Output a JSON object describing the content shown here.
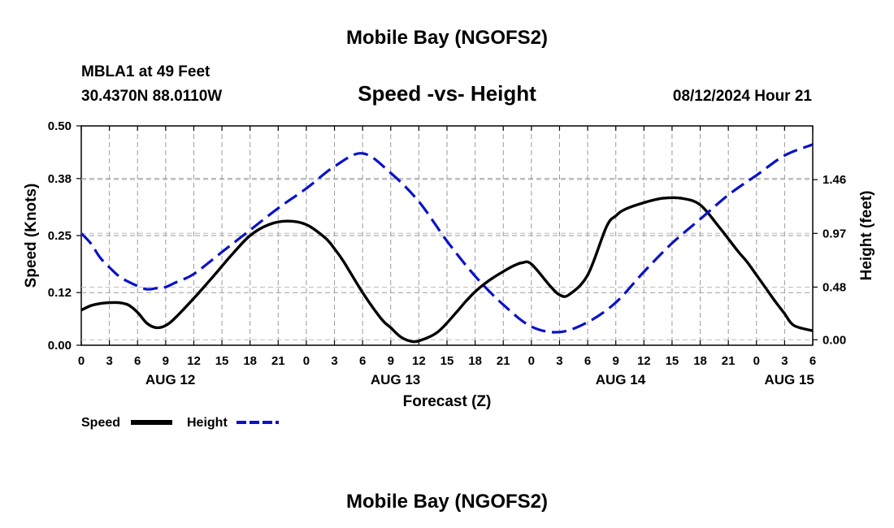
{
  "header": {
    "title": "Mobile Bay (NGOFS2)",
    "station": "MBLA1 at 49 Feet",
    "coords": "30.4370N  88.0110W",
    "subtitle": "Speed -vs- Height",
    "datetime": "08/12/2024 Hour 21"
  },
  "footer": {
    "title": "Mobile Bay (NGOFS2)"
  },
  "legend": {
    "speed_label": "Speed",
    "height_label": "Height"
  },
  "chart_data": {
    "type": "line",
    "title": "Speed -vs- Height",
    "xlabel": "Forecast (Z)",
    "ylabel": "Speed (Knots)",
    "y2label": "Height (feet)",
    "x_range_hours": [
      0,
      78
    ],
    "ylim": [
      0,
      0.5
    ],
    "y2lim": [
      -0.05,
      1.95
    ],
    "yticks": [
      0.0,
      0.12,
      0.25,
      0.38,
      0.5
    ],
    "ytick_labels": [
      "0.00",
      "0.12",
      "0.25",
      "0.38",
      "0.50"
    ],
    "y2ticks": [
      0.0,
      0.48,
      0.97,
      1.46
    ],
    "y2tick_labels": [
      "0.00",
      "0.48",
      "0.97",
      "1.46"
    ],
    "xtick_hours": [
      0,
      3,
      6,
      9,
      12,
      15,
      18,
      21,
      24,
      27,
      30,
      33,
      36,
      39,
      42,
      45,
      48,
      51,
      54,
      57,
      60,
      63,
      66,
      69,
      72,
      75,
      78
    ],
    "xtick_labels": [
      "0",
      "3",
      "6",
      "9",
      "12",
      "15",
      "18",
      "21",
      "0",
      "3",
      "6",
      "9",
      "12",
      "15",
      "18",
      "21",
      "0",
      "3",
      "6",
      "9",
      "12",
      "15",
      "18",
      "21",
      "0",
      "3",
      "6"
    ],
    "date_labels": [
      {
        "label": "AUG 12",
        "hour": 9.5
      },
      {
        "label": "AUG 13",
        "hour": 33.5
      },
      {
        "label": "AUG 14",
        "hour": 57.5
      },
      {
        "label": "AUG 15",
        "hour": 75.5
      }
    ],
    "series": [
      {
        "name": "Speed",
        "axis": "left",
        "color": "#000000",
        "style": "solid",
        "x": [
          0,
          1,
          2,
          3,
          4,
          5,
          6,
          7,
          8,
          9,
          10,
          12,
          14,
          16,
          18,
          20,
          22,
          24,
          26,
          27,
          28,
          30,
          32,
          33,
          34,
          35,
          36,
          38,
          40,
          41,
          42,
          43,
          44,
          45,
          46,
          47,
          48,
          50,
          51,
          52,
          54,
          56,
          57,
          58,
          60,
          62,
          64,
          66,
          68,
          70,
          71,
          72,
          73,
          74,
          75,
          76,
          78
        ],
        "y": [
          0.08,
          0.09,
          0.095,
          0.097,
          0.097,
          0.092,
          0.075,
          0.05,
          0.04,
          0.045,
          0.062,
          0.107,
          0.155,
          0.205,
          0.25,
          0.275,
          0.283,
          0.275,
          0.245,
          0.22,
          0.19,
          0.12,
          0.06,
          0.04,
          0.02,
          0.01,
          0.01,
          0.03,
          0.075,
          0.1,
          0.122,
          0.14,
          0.155,
          0.168,
          0.18,
          0.188,
          0.185,
          0.135,
          0.115,
          0.115,
          0.16,
          0.27,
          0.295,
          0.31,
          0.325,
          0.335,
          0.335,
          0.32,
          0.27,
          0.215,
          0.19,
          0.16,
          0.13,
          0.1,
          0.072,
          0.045,
          0.033
        ]
      },
      {
        "name": "Height",
        "axis": "right",
        "color": "#0a12c8",
        "style": "dashed",
        "x": [
          0,
          1,
          2,
          3,
          4,
          5,
          6,
          7,
          8,
          9,
          10,
          12,
          15,
          18,
          21,
          24,
          27,
          30,
          33,
          36,
          39,
          42,
          45,
          48,
          51,
          54,
          57,
          60,
          63,
          66,
          69,
          72,
          75,
          78
        ],
        "y": [
          0.97,
          0.88,
          0.75,
          0.66,
          0.58,
          0.53,
          0.49,
          0.46,
          0.47,
          0.48,
          0.52,
          0.6,
          0.8,
          1.0,
          1.2,
          1.38,
          1.58,
          1.7,
          1.52,
          1.26,
          0.9,
          0.58,
          0.32,
          0.12,
          0.07,
          0.16,
          0.34,
          0.62,
          0.88,
          1.1,
          1.32,
          1.5,
          1.68,
          1.78
        ]
      }
    ]
  }
}
